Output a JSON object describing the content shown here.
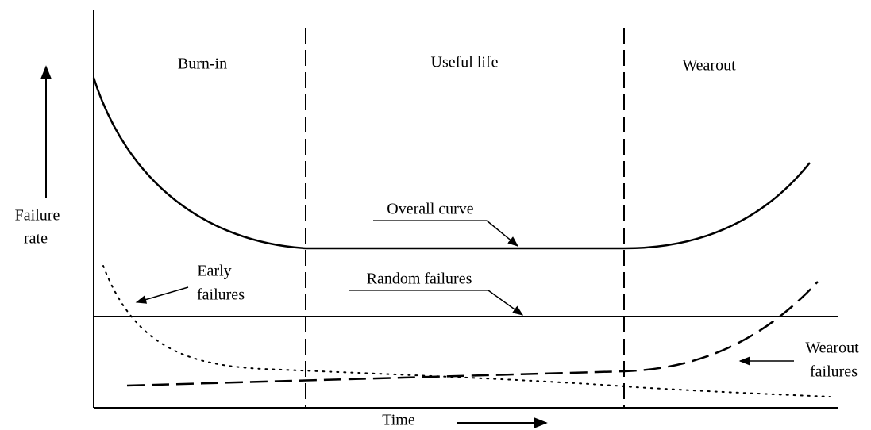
{
  "phases": [
    "Burn-in",
    "Useful life",
    "Wearout"
  ],
  "y_axis_label": [
    "Failure",
    "rate"
  ],
  "x_axis_label": "Time",
  "curve_labels": {
    "overall": "Overall curve",
    "random": "Random failures",
    "early": [
      "Early",
      "failures"
    ],
    "wearout": [
      "Wearout",
      "failures"
    ]
  }
}
